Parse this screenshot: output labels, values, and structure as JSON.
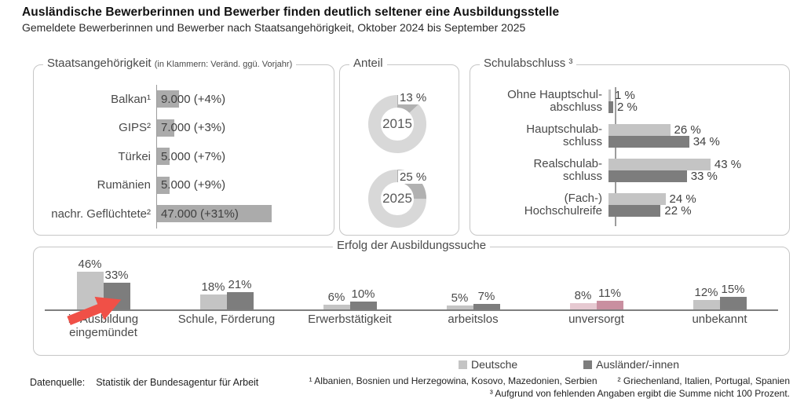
{
  "header": {
    "title": "Ausländische Bewerberinnen und Bewerber finden deutlich seltener eine Ausbildungsstelle",
    "subtitle": "Gemeldete Bewerberinnen und Bewerber nach Staatsangehörigkeit, Oktober 2024 bis September 2025"
  },
  "colors": {
    "deutsche": "#c4c4c4",
    "auslaender": "#7d7d7d",
    "nationality_bar": "#ababab",
    "donut_ring": "#d8d8d8",
    "donut_segment": "#b1b1b1",
    "unversorgt_light": "#e6c9d1",
    "unversorgt_dark": "#c98fa0",
    "arrow_red": "#f05047",
    "text": "#4a4a4a"
  },
  "chart_data": [
    {
      "id": "staatsangehoerigkeit",
      "type": "bar",
      "orientation": "horizontal",
      "title": "Staatsangehörigkeit",
      "title_note": "(in Klammern: Veränd. ggü. Vorjahr)",
      "categories": [
        "Balkan¹",
        "GIPS²",
        "Türkei",
        "Rumänien",
        "nachr. Geflüchtete²"
      ],
      "values": [
        9000,
        7000,
        5000,
        5000,
        47000
      ],
      "value_labels": [
        "9.000 (+4%)",
        "7.000 (+3%)",
        "5.000 (+7%)",
        "5.000 (+9%)",
        "47.000 (+31%)"
      ],
      "xlim": [
        0,
        50000
      ]
    },
    {
      "id": "anteil",
      "type": "pie",
      "title": "Anteil",
      "donuts": [
        {
          "year": "2015",
          "value": 13,
          "label": "13 %"
        },
        {
          "year": "2025",
          "value": 25,
          "label": "25 %"
        }
      ]
    },
    {
      "id": "schulabschluss",
      "type": "bar",
      "orientation": "horizontal",
      "title": "Schulabschluss ³",
      "categories": [
        "Ohne Hauptschul-\nabschluss",
        "Hauptschulab-\nschluss",
        "Realschulab-\nschluss",
        "(Fach-)\nHochschulreife"
      ],
      "series": [
        {
          "name": "Deutsche",
          "values": [
            1,
            26,
            43,
            24
          ],
          "value_labels": [
            "1 %",
            "26 %",
            "43 %",
            "24 %"
          ]
        },
        {
          "name": "Ausländer/-innen",
          "values": [
            2,
            34,
            33,
            22
          ],
          "value_labels": [
            "2 %",
            "34 %",
            "33 %",
            "22 %"
          ]
        }
      ],
      "xlim": [
        0,
        50
      ]
    },
    {
      "id": "erfolg",
      "type": "bar",
      "orientation": "vertical",
      "title": "Erfolg der Ausbildungssuche",
      "categories": [
        "in Ausbildung\neingemündet",
        "Schule, Förderung",
        "Erwerbstätigkeit",
        "arbeitslos",
        "unversorgt",
        "unbekannt"
      ],
      "series": [
        {
          "name": "Deutsche",
          "values": [
            46,
            18,
            6,
            5,
            8,
            12
          ],
          "value_labels": [
            "46%",
            "18%",
            "6%",
            "5%",
            "8%",
            "12%"
          ]
        },
        {
          "name": "Ausländer/-innen",
          "values": [
            33,
            21,
            10,
            7,
            11,
            15
          ],
          "value_labels": [
            "33%",
            "21%",
            "10%",
            "7%",
            "11%",
            "15%"
          ]
        }
      ],
      "highlight_index": 4,
      "arrow_category_index": 0,
      "ylim": [
        0,
        50
      ]
    }
  ],
  "legend": {
    "items": [
      {
        "label": "Deutsche"
      },
      {
        "label": "Ausländer/-innen"
      }
    ]
  },
  "footer": {
    "source_label": "Datenquelle:",
    "source": "Statistik der Bundesagentur für Arbeit",
    "footnote1": "¹ Albanien, Bosnien und Herzegowina, Kosovo, Mazedonien, Serbien",
    "footnote2": "² Griechenland, Italien, Portugal, Spanien",
    "footnote3": "³ Aufgrund von fehlenden Angaben ergibt die Summe nicht 100 Prozent."
  }
}
